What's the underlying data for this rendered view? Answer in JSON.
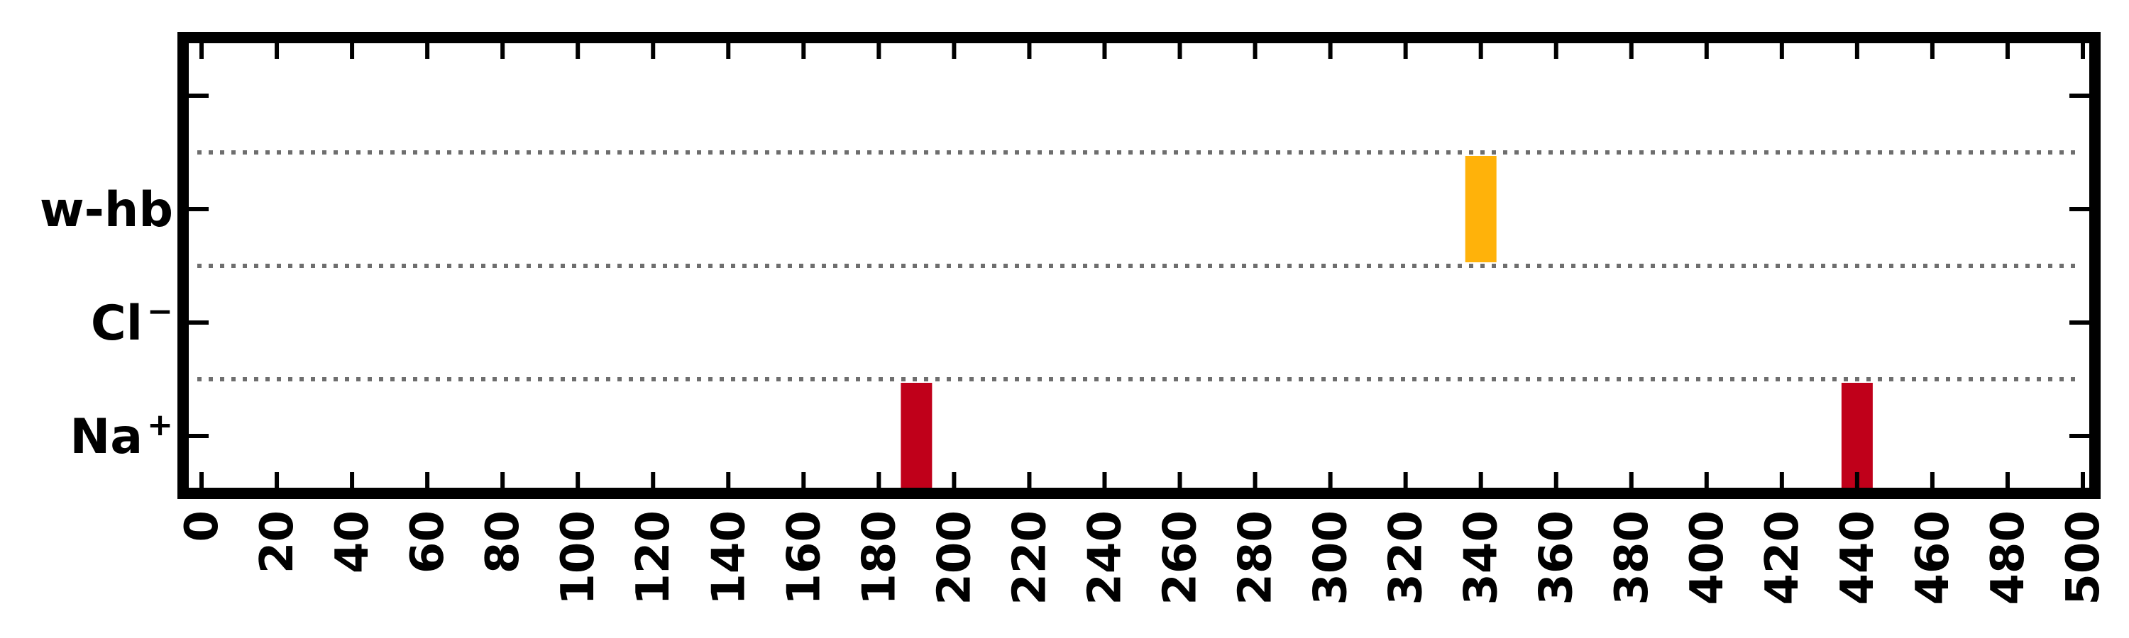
{
  "chart_data": {
    "type": "bar",
    "title": "",
    "xlabel": "",
    "ylabel": "",
    "xlim": [
      0,
      500
    ],
    "xticks": [
      0,
      20,
      40,
      60,
      80,
      100,
      120,
      140,
      160,
      180,
      200,
      220,
      240,
      260,
      280,
      300,
      320,
      340,
      360,
      380,
      400,
      420,
      440,
      460,
      480,
      500
    ],
    "categories": [
      {
        "id": "na",
        "label": "Na",
        "superscript": "+"
      },
      {
        "id": "cl",
        "label": "Cl",
        "superscript": "−"
      },
      {
        "id": "whb",
        "label": "w-hb",
        "superscript": ""
      }
    ],
    "events": [
      {
        "category": "na",
        "x": 190,
        "color": "#c0001a"
      },
      {
        "category": "whb",
        "x": 340,
        "color": "#ffb20a"
      },
      {
        "category": "na",
        "x": 440,
        "color": "#c0001a"
      }
    ],
    "grid": "dotted horizontal separators between rows",
    "legend": "none"
  }
}
